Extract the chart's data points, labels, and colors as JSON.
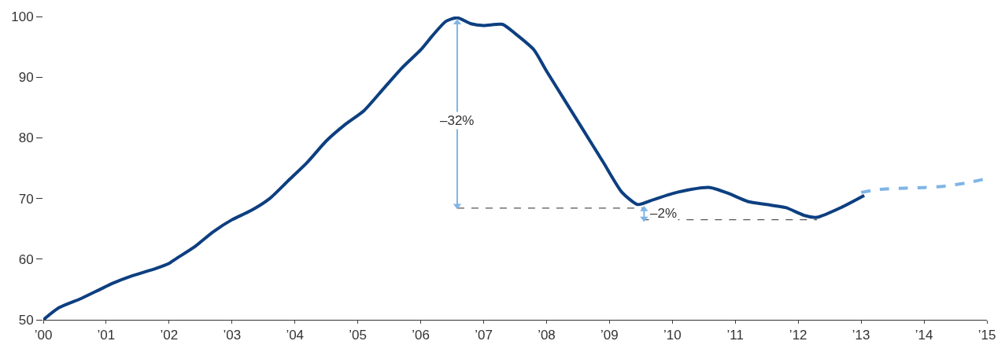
{
  "chart_data": {
    "type": "line",
    "x": [
      2000,
      2000.25,
      2000.6,
      2000.9,
      2001.1,
      2001.4,
      2001.8,
      2002.0,
      2002.1,
      2002.4,
      2002.7,
      2003.0,
      2003.3,
      2003.6,
      2003.9,
      2004.2,
      2004.5,
      2004.8,
      2005.1,
      2005.4,
      2005.7,
      2006.0,
      2006.2,
      2006.4,
      2006.58,
      2006.8,
      2007.0,
      2007.3,
      2007.5,
      2007.8,
      2008.0,
      2008.3,
      2008.6,
      2008.9,
      2009.2,
      2009.45,
      2009.7,
      2010.0,
      2010.3,
      2010.6,
      2010.9,
      2011.2,
      2011.5,
      2011.8,
      2012.1,
      2012.3,
      2012.7,
      2013.05
    ],
    "series": [
      {
        "color": "#0d3f80",
        "line_style": "solid",
        "values": [
          50,
          52,
          53.5,
          55,
          56,
          57.2,
          58.5,
          59.3,
          60,
          62,
          64.5,
          66.5,
          68,
          70,
          73,
          76,
          79.5,
          82.2,
          84.5,
          88,
          91.5,
          94.5,
          97,
          99.2,
          99.8,
          98.8,
          98.5,
          98.7,
          97.2,
          94.5,
          91,
          86,
          81,
          76,
          71,
          69,
          69.8,
          70.8,
          71.5,
          71.8,
          70.8,
          69.5,
          69,
          68.5,
          67.2,
          66.9,
          68.6,
          70.5
        ]
      },
      {
        "color": "#7fb5e6",
        "line_style": "dashed",
        "x": [
          2013.0,
          2013.3,
          2013.7,
          2014.0,
          2014.3,
          2014.7,
          2015.0
        ],
        "values": [
          71,
          71.5,
          71.7,
          71.8,
          72.0,
          72.6,
          73.3
        ]
      },
      {
        "color": "#555555",
        "line_style": "dotted",
        "x": [
          2006.58,
          2009.55
        ],
        "values": [
          68.4,
          68.4
        ]
      },
      {
        "color": "#555555",
        "line_style": "dotted",
        "x": [
          2009.55,
          2012.3
        ],
        "values": [
          66.5,
          66.5
        ]
      },
      {
        "color": "#7fb5e6",
        "line_style": "solid",
        "marker": "triangle",
        "x": [
          2006.58,
          2006.58
        ],
        "values": [
          99,
          68.8
        ]
      },
      {
        "color": "#7fb5e6",
        "line_style": "solid",
        "marker": "triangle",
        "x": [
          2009.55,
          2009.55
        ],
        "values": [
          68.2,
          66.7
        ]
      }
    ],
    "annotations": [
      {
        "text": "–32%",
        "x": 2006.58,
        "y": 82.9
      },
      {
        "text": "–2%",
        "x": 2009.55,
        "y": 67.5
      }
    ],
    "xlim": [
      2000,
      2015
    ],
    "xticks": [
      {
        "value": 2000,
        "label": "’00"
      },
      {
        "value": 2001,
        "label": "’01"
      },
      {
        "value": 2002,
        "label": "’02"
      },
      {
        "value": 2003,
        "label": "’03"
      },
      {
        "value": 2004,
        "label": "’04"
      },
      {
        "value": 2005,
        "label": "’05"
      },
      {
        "value": 2006,
        "label": "’06"
      },
      {
        "value": 2007,
        "label": "’07"
      },
      {
        "value": 2008,
        "label": "’08"
      },
      {
        "value": 2009,
        "label": "’09"
      },
      {
        "value": 2010,
        "label": "’10"
      },
      {
        "value": 2011,
        "label": "’11"
      },
      {
        "value": 2012,
        "label": "’12"
      },
      {
        "value": 2013,
        "label": "’13"
      },
      {
        "value": 2014,
        "label": "’14"
      },
      {
        "value": 2015,
        "label": "’15"
      }
    ],
    "ylim": [
      50,
      100
    ],
    "yticks": [
      50,
      60,
      70,
      80,
      90,
      100
    ],
    "grid": false
  }
}
